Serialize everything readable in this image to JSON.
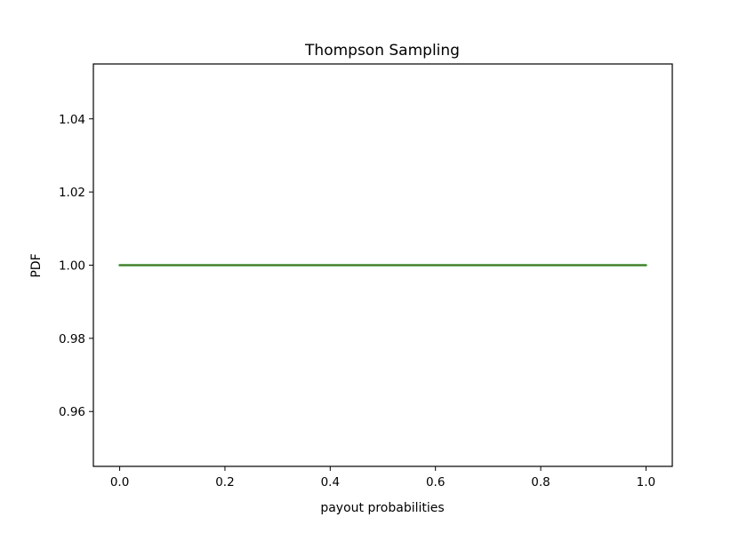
{
  "chart_data": {
    "type": "line",
    "title": "Thompson Sampling",
    "xlabel": "payout probabilities",
    "ylabel": "PDF",
    "xlim": [
      -0.05,
      1.05
    ],
    "ylim": [
      0.945,
      1.055
    ],
    "xticks": [
      0.0,
      0.2,
      0.4,
      0.6,
      0.8,
      1.0
    ],
    "xtick_labels": [
      "0.0",
      "0.2",
      "0.4",
      "0.6",
      "0.8",
      "1.0"
    ],
    "yticks": [
      0.96,
      0.98,
      1.0,
      1.02,
      1.04
    ],
    "ytick_labels": [
      "0.96",
      "0.98",
      "1.00",
      "1.02",
      "1.04"
    ],
    "grid": false,
    "legend": "none",
    "series": [
      {
        "color": "#2ca02c",
        "x": [
          0.0,
          0.05,
          0.1,
          0.15,
          0.2,
          0.25,
          0.3,
          0.35,
          0.4,
          0.45,
          0.5,
          0.55,
          0.6,
          0.65,
          0.7,
          0.75,
          0.8,
          0.85,
          0.9,
          0.95,
          1.0
        ],
        "y": [
          1.0,
          1.0,
          1.0,
          1.0,
          1.0,
          1.0,
          1.0,
          1.0,
          1.0,
          1.0,
          1.0,
          1.0,
          1.0,
          1.0,
          1.0,
          1.0,
          1.0,
          1.0,
          1.0,
          1.0,
          1.0
        ]
      },
      {
        "color": "#556b2f",
        "x": [
          0.0,
          0.05,
          0.1,
          0.15,
          0.2,
          0.25,
          0.3,
          0.35,
          0.4,
          0.45,
          0.5,
          0.55,
          0.6,
          0.65,
          0.7,
          0.75,
          0.8,
          0.85,
          0.9,
          0.95,
          1.0
        ],
        "y": [
          1.0,
          1.0,
          1.0,
          1.0,
          1.0,
          1.0,
          1.0,
          1.0,
          1.0,
          1.0,
          1.0,
          1.0,
          1.0,
          1.0,
          1.0,
          1.0,
          1.0,
          1.0,
          1.0,
          1.0,
          1.0
        ]
      }
    ]
  }
}
